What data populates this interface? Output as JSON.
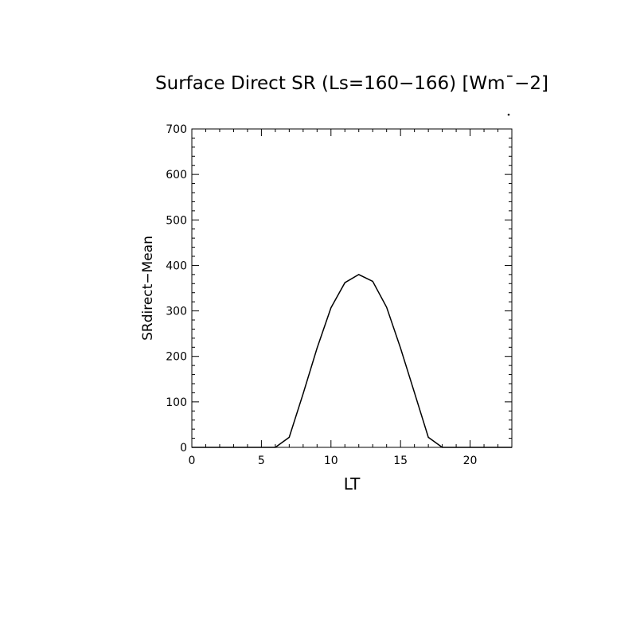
{
  "chart_data": {
    "type": "line",
    "title": "Surface Direct SR (Ls=160−166) [Wm¯−2]",
    "xlabel": "LT",
    "ylabel": "SRdirect−Mean",
    "xlim": [
      0,
      23
    ],
    "ylim": [
      0,
      700
    ],
    "x_ticks": [
      0,
      5,
      10,
      15,
      20
    ],
    "x_tick_labels": [
      "0",
      "5",
      "10",
      "15",
      "20"
    ],
    "y_ticks": [
      0,
      100,
      200,
      300,
      400,
      500,
      600,
      700
    ],
    "y_tick_labels": [
      "0",
      "100",
      "200",
      "300",
      "400",
      "500",
      "600",
      "700"
    ],
    "grid": false,
    "series": [
      {
        "x": [
          0,
          1,
          2,
          3,
          4,
          5,
          6,
          7,
          8,
          9,
          10,
          11,
          12,
          13,
          14,
          15,
          16,
          17,
          18,
          19,
          20,
          21,
          22,
          23
        ],
        "values": [
          0,
          0,
          0,
          0,
          0,
          0,
          0,
          22,
          118,
          218,
          307,
          362,
          380,
          365,
          308,
          218,
          120,
          22,
          0,
          0,
          0,
          0,
          0,
          0
        ]
      }
    ]
  }
}
